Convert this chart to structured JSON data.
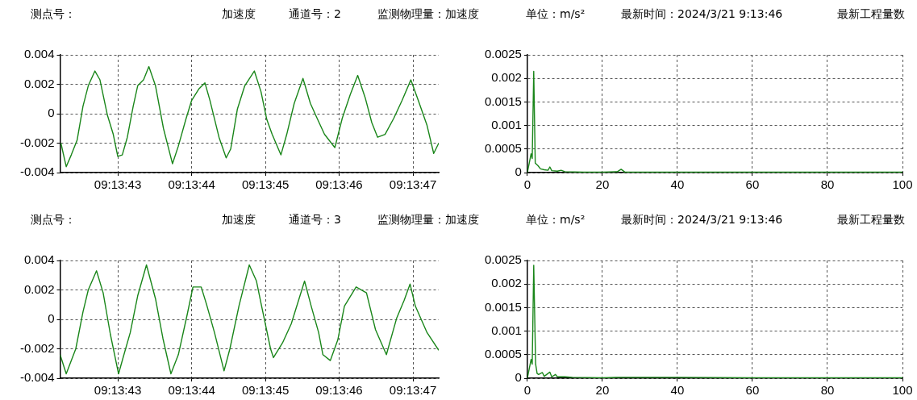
{
  "chart_data": [
    {
      "type": "other",
      "annotations": [
        "测点号：",
        "加速度",
        "通道号：2",
        "监测物理量：加速度",
        "单位：m/s²",
        "最新时间：2024/3/21 9:13:46",
        "最新工程量数"
      ]
    },
    {
      "type": "line",
      "xlim": [
        9.228394,
        9.229819
      ],
      "xticks": [
        {
          "value": 9.228611,
          "label": "09:13:43"
        },
        {
          "value": 9.228889,
          "label": "09:13:44"
        },
        {
          "value": 9.229167,
          "label": "09:13:45"
        },
        {
          "value": 9.229444,
          "label": "09:13:46"
        },
        {
          "value": 9.229722,
          "label": "09:13:47"
        }
      ],
      "ylim": [
        -0.004,
        0.004
      ],
      "yticks": [
        -0.004,
        -0.002,
        0,
        0.002,
        0.004
      ],
      "grid": true,
      "legend": false,
      "x": [
        9.228397,
        9.228417,
        9.228436,
        9.228458,
        9.22848,
        9.2285,
        9.228525,
        9.228544,
        9.228572,
        9.228594,
        9.228611,
        9.228628,
        9.228647,
        9.228669,
        9.228686,
        9.228708,
        9.228728,
        9.228753,
        9.228783,
        9.228817,
        9.228839,
        9.228867,
        9.228889,
        9.228917,
        9.228939,
        9.228958,
        9.228992,
        9.229019,
        9.229036,
        9.229061,
        9.229089,
        9.229125,
        9.22915,
        9.229172,
        9.229192,
        9.229225,
        9.229247,
        9.229275,
        9.229308,
        9.229336,
        9.229361,
        9.229389,
        9.229428,
        9.229456,
        9.229486,
        9.229514,
        9.229542,
        9.229567,
        9.229589,
        9.229617,
        9.22965,
        9.229681,
        9.229714,
        9.229742,
        9.229775,
        9.2298,
        9.229819
      ],
      "series": [
        {
          "color": "#1a861a",
          "values": [
            -0.002,
            -0.0036,
            -0.0028,
            -0.0018,
            0.0005,
            0.0019,
            0.0029,
            0.0023,
            -0.0001,
            -0.0014,
            -0.0029,
            -0.0028,
            -0.0016,
            0.0005,
            0.0019,
            0.0023,
            0.0032,
            0.0019,
            -0.001,
            -0.0034,
            -0.0022,
            -0.0004,
            0.0009,
            0.0017,
            0.0021,
            0.0009,
            -0.0016,
            -0.003,
            -0.0024,
            0.0003,
            0.0019,
            0.0029,
            0.0015,
            -0.0004,
            -0.0014,
            -0.0028,
            -0.0014,
            0.0007,
            0.0024,
            0.0007,
            -0.0003,
            -0.0014,
            -0.0023,
            -0.0003,
            0.0013,
            0.0026,
            0.0011,
            -0.0006,
            -0.0016,
            -0.0014,
            -0.0003,
            0.0009,
            0.0023,
            0.0009,
            -0.0008,
            -0.0027,
            -0.002
          ]
        }
      ]
    },
    {
      "type": "line",
      "xlim": [
        0,
        100
      ],
      "xticks": [
        0,
        20,
        40,
        60,
        80,
        100
      ],
      "ylim": [
        0,
        0.0025
      ],
      "yticks": [
        0,
        0.0005,
        0.001,
        0.0015,
        0.002,
        0.0025
      ],
      "grid": true,
      "legend": false,
      "x": [
        0,
        0.5,
        1,
        1.3,
        1.7,
        2.1,
        2.8,
        3.5,
        4.5,
        5.5,
        6,
        6.5,
        8,
        9,
        10,
        15,
        20,
        24,
        25,
        26,
        40,
        60,
        80,
        100
      ],
      "series": [
        {
          "color": "#1a861a",
          "values": [
            0,
            0.0002,
            0.0004,
            0.0003,
            0.00215,
            0.0002,
            0.00015,
            8e-05,
            6e-05,
            5e-05,
            0.00012,
            4e-05,
            3e-05,
            5e-05,
            2e-05,
            1e-05,
            1e-05,
            2e-05,
            7e-05,
            1e-05,
            1e-05,
            1e-05,
            1e-05,
            1e-05
          ]
        }
      ]
    },
    {
      "type": "other",
      "annotations": [
        "测点号：",
        "加速度",
        "通道号：3",
        "监测物理量：加速度",
        "单位：m/s²",
        "最新时间：2024/3/21 9:13:46",
        "最新工程量数"
      ]
    },
    {
      "type": "line",
      "xlim": [
        9.228394,
        9.229819
      ],
      "xticks": [
        {
          "value": 9.228611,
          "label": "09:13:43"
        },
        {
          "value": 9.228889,
          "label": "09:13:44"
        },
        {
          "value": 9.229167,
          "label": "09:13:45"
        },
        {
          "value": 9.229444,
          "label": "09:13:46"
        },
        {
          "value": 9.229722,
          "label": "09:13:47"
        }
      ],
      "ylim": [
        -0.004,
        0.004
      ],
      "yticks": [
        -0.004,
        -0.002,
        0,
        0.002,
        0.004
      ],
      "grid": true,
      "legend": false,
      "x": [
        9.228394,
        9.228417,
        9.228453,
        9.22848,
        9.2285,
        9.228531,
        9.228556,
        9.228583,
        9.228614,
        9.228631,
        9.228658,
        9.228686,
        9.228719,
        9.228753,
        9.228781,
        9.228811,
        9.228839,
        9.228872,
        9.228894,
        9.228925,
        9.228947,
        9.228975,
        9.229011,
        9.229033,
        9.229067,
        9.229106,
        9.229133,
        9.22915,
        9.229186,
        9.229197,
        9.229231,
        9.229264,
        9.229314,
        9.229339,
        9.229367,
        9.229383,
        9.229411,
        9.229439,
        9.229464,
        9.229508,
        9.229547,
        9.229581,
        9.229622,
        9.229661,
        9.229689,
        9.229711,
        9.229731,
        9.229775,
        9.229819
      ],
      "series": [
        {
          "color": "#1a861a",
          "values": [
            -0.0024,
            -0.0037,
            -0.002,
            0.0005,
            0.002,
            0.0033,
            0.0018,
            -0.001,
            -0.0037,
            -0.0026,
            -0.0009,
            0.0016,
            0.0037,
            0.0014,
            -0.0013,
            -0.0037,
            -0.0024,
            0.0003,
            0.0022,
            0.0022,
            0.0009,
            -0.0009,
            -0.0035,
            -0.002,
            0.0009,
            0.0037,
            0.0026,
            0.0011,
            -0.002,
            -0.0026,
            -0.0016,
            -0.0003,
            0.0026,
            0.0009,
            -0.0009,
            -0.0024,
            -0.0028,
            -0.0014,
            0.0009,
            0.0022,
            0.0018,
            -0.0007,
            -0.0024,
            0.0001,
            0.0013,
            0.0024,
            0.0009,
            -0.0009,
            -0.0021
          ]
        }
      ]
    },
    {
      "type": "line",
      "xlim": [
        0,
        100
      ],
      "xticks": [
        0,
        20,
        40,
        60,
        80,
        100
      ],
      "ylim": [
        0,
        0.0025
      ],
      "yticks": [
        0,
        0.0005,
        0.001,
        0.0015,
        0.002,
        0.0025
      ],
      "grid": true,
      "legend": false,
      "x": [
        0,
        0.5,
        1,
        1.3,
        1.7,
        2.2,
        2.6,
        3,
        4,
        4.5,
        6,
        6.5,
        7.5,
        8,
        10,
        12,
        20,
        25,
        40,
        60,
        80,
        100
      ],
      "series": [
        {
          "color": "#1a861a",
          "values": [
            0,
            0.0002,
            0.0004,
            0.0003,
            0.0024,
            0.0003,
            0.0001,
            8e-05,
            0.00012,
            4e-05,
            0.00013,
            3e-05,
            8e-05,
            3e-05,
            3e-05,
            2e-05,
            1e-05,
            2e-05,
            2e-05,
            1e-05,
            1e-05,
            1e-05
          ]
        }
      ]
    }
  ]
}
